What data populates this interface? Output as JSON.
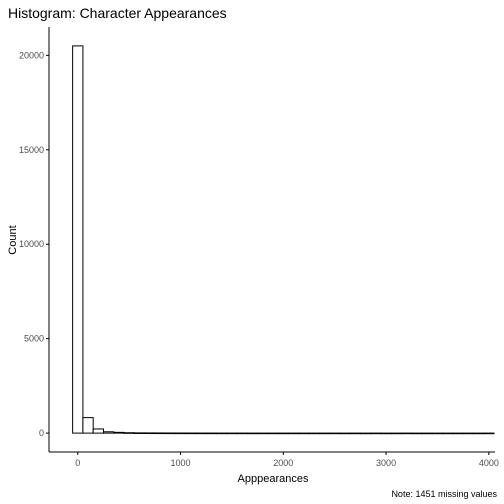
{
  "chart_data": {
    "type": "bar",
    "title": "Histogram: Character Appearances",
    "xlabel": "Apppearances",
    "ylabel": "Count",
    "caption": "Note: 1451 missing values",
    "xlim": [
      -280,
      4060
    ],
    "ylim": [
      -1000,
      21500
    ],
    "xticks": [
      0,
      1000,
      2000,
      3000,
      4000
    ],
    "xtick_labels": [
      "0",
      "1000",
      "2000",
      "3000",
      "4000"
    ],
    "yticks": [
      0,
      5000,
      10000,
      15000,
      20000
    ],
    "ytick_labels": [
      "0",
      "5000",
      "10000",
      "15000",
      "20000"
    ],
    "bin_edges": [
      -50,
      50,
      150,
      250,
      350,
      450,
      550,
      650,
      750,
      850,
      950,
      1050,
      1150,
      1250,
      1350,
      1450,
      1550,
      1650,
      1750,
      1850,
      1950,
      2050,
      2150,
      2250,
      2350,
      2450,
      2550,
      2650,
      2750,
      2850,
      2950,
      3050,
      3150,
      3250,
      3350,
      3450,
      3550,
      3650,
      3750,
      3850,
      3950,
      4050
    ],
    "values": [
      20500,
      820,
      220,
      70,
      40,
      20,
      12,
      10,
      8,
      6,
      5,
      4,
      3,
      3,
      2,
      2,
      2,
      1,
      1,
      1,
      1,
      1,
      1,
      1,
      1,
      1,
      0,
      1,
      0,
      1,
      0,
      0,
      1,
      0,
      0,
      0,
      0,
      0,
      0,
      0,
      1
    ],
    "grid": false,
    "bar_fill": "#ffffff",
    "bar_stroke": "#000000"
  }
}
